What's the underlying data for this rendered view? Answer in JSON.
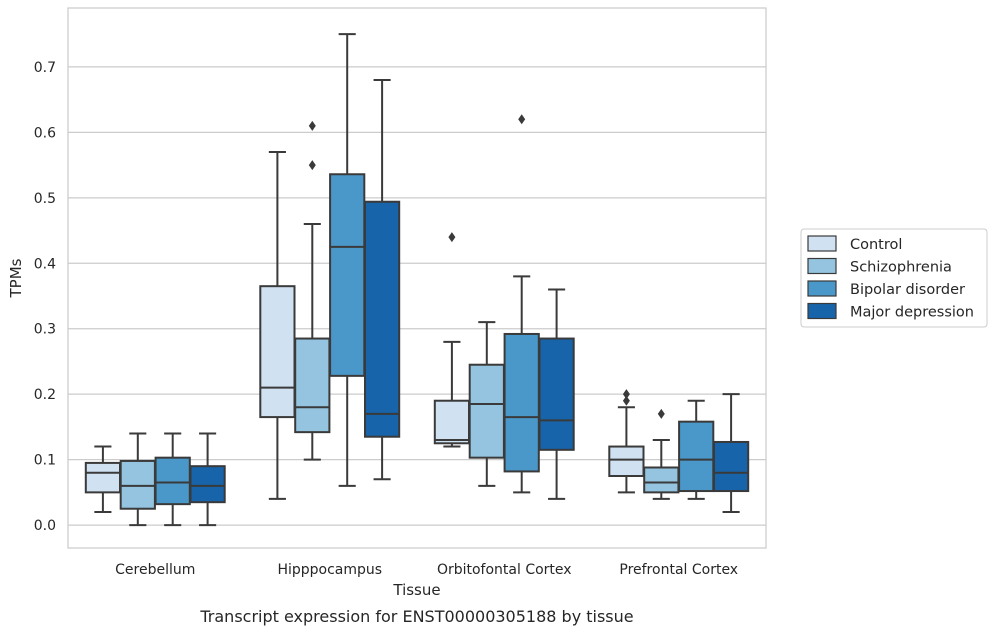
{
  "caption": "Transcript expression for ENST00000305188 by tissue",
  "chart_data": {
    "type": "box",
    "xlabel": "Tissue",
    "ylabel": "TPMs",
    "ylim": [
      -0.035,
      0.79
    ],
    "yticks": [
      0.0,
      0.1,
      0.2,
      0.3,
      0.4,
      0.5,
      0.6,
      0.7
    ],
    "ytick_labels": [
      "0.0",
      "0.1",
      "0.2",
      "0.3",
      "0.4",
      "0.5",
      "0.6",
      "0.7"
    ],
    "grid": true,
    "legend_position": "right",
    "categories": [
      "Cerebellum",
      "Hipppocampus",
      "Orbitofontal Cortex",
      "Prefrontal Cortex"
    ],
    "series": [
      {
        "name": "Control",
        "color": "#d0e1f2",
        "boxes": [
          {
            "whislo": 0.02,
            "q1": 0.05,
            "med": 0.08,
            "q3": 0.095,
            "whishi": 0.12,
            "fliers": []
          },
          {
            "whislo": 0.04,
            "q1": 0.165,
            "med": 0.21,
            "q3": 0.365,
            "whishi": 0.57,
            "fliers": []
          },
          {
            "whislo": 0.12,
            "q1": 0.125,
            "med": 0.13,
            "q3": 0.19,
            "whishi": 0.28,
            "fliers": [
              0.44
            ]
          },
          {
            "whislo": 0.05,
            "q1": 0.075,
            "med": 0.1,
            "q3": 0.12,
            "whishi": 0.18,
            "fliers": [
              0.19,
              0.2
            ]
          }
        ]
      },
      {
        "name": "Schizophrenia",
        "color": "#94c4df",
        "boxes": [
          {
            "whislo": 0.0,
            "q1": 0.025,
            "med": 0.06,
            "q3": 0.098,
            "whishi": 0.14,
            "fliers": []
          },
          {
            "whislo": 0.1,
            "q1": 0.142,
            "med": 0.18,
            "q3": 0.285,
            "whishi": 0.46,
            "fliers": [
              0.55,
              0.61
            ]
          },
          {
            "whislo": 0.06,
            "q1": 0.103,
            "med": 0.185,
            "q3": 0.245,
            "whishi": 0.31,
            "fliers": []
          },
          {
            "whislo": 0.04,
            "q1": 0.05,
            "med": 0.065,
            "q3": 0.088,
            "whishi": 0.13,
            "fliers": [
              0.17
            ]
          }
        ]
      },
      {
        "name": "Bipolar disorder",
        "color": "#4a98c9",
        "boxes": [
          {
            "whislo": 0.0,
            "q1": 0.032,
            "med": 0.065,
            "q3": 0.103,
            "whishi": 0.14,
            "fliers": []
          },
          {
            "whislo": 0.06,
            "q1": 0.228,
            "med": 0.425,
            "q3": 0.536,
            "whishi": 0.75,
            "fliers": []
          },
          {
            "whislo": 0.05,
            "q1": 0.082,
            "med": 0.165,
            "q3": 0.292,
            "whishi": 0.38,
            "fliers": [
              0.62
            ]
          },
          {
            "whislo": 0.04,
            "q1": 0.052,
            "med": 0.1,
            "q3": 0.158,
            "whishi": 0.19,
            "fliers": []
          }
        ]
      },
      {
        "name": "Major depression",
        "color": "#1764ab",
        "boxes": [
          {
            "whislo": 0.0,
            "q1": 0.035,
            "med": 0.06,
            "q3": 0.09,
            "whishi": 0.14,
            "fliers": []
          },
          {
            "whislo": 0.07,
            "q1": 0.135,
            "med": 0.17,
            "q3": 0.494,
            "whishi": 0.68,
            "fliers": []
          },
          {
            "whislo": 0.04,
            "q1": 0.115,
            "med": 0.16,
            "q3": 0.285,
            "whishi": 0.36,
            "fliers": []
          },
          {
            "whislo": 0.02,
            "q1": 0.052,
            "med": 0.08,
            "q3": 0.127,
            "whishi": 0.2,
            "fliers": []
          }
        ]
      }
    ]
  }
}
